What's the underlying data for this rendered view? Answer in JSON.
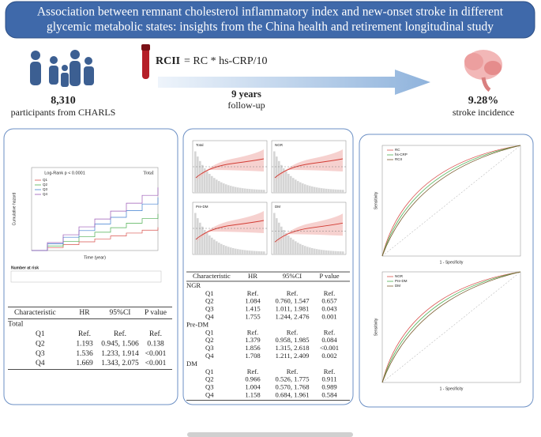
{
  "header": {
    "title": [
      "Association between remnant cholesterol inflammatory index and new-onset stroke in different",
      "glycemic metabolic states: insights from the China health and retirement longitudinal study"
    ]
  },
  "participants": {
    "count": "8,310",
    "label": "participants from CHARLS"
  },
  "formula": {
    "name": "RCII",
    "expression": "= RC * hs-CRP/10"
  },
  "followup": {
    "years": "9 years",
    "label": "follow-up"
  },
  "incidence": {
    "value": "9.28%",
    "label": "stroke incidence"
  },
  "left_panel": {
    "km": {
      "annotation": "Log-Rank p < 0.0001",
      "group": "Total",
      "legend": [
        "Q1",
        "Q2",
        "Q3",
        "Q4"
      ],
      "xlabel": "Time (year)",
      "ylabel": "Cumulative hazard",
      "risk_title": "Number at risk"
    },
    "table": {
      "header": [
        "Characteristic",
        "HR",
        "95%CI",
        "P value"
      ],
      "rows": [
        [
          "Total"
        ],
        [
          "Q1",
          "Ref.",
          "Ref.",
          "Ref."
        ],
        [
          "Q2",
          "1.193",
          "0.945, 1.506",
          "0.138"
        ],
        [
          "Q3",
          "1.536",
          "1.233, 1.914",
          "<0.001"
        ],
        [
          "Q4",
          "1.669",
          "1.343, 2.075",
          "<0.001"
        ]
      ]
    }
  },
  "middle_panel": {
    "plots": [
      "Total",
      "NGR",
      "Pre-DM",
      "DM"
    ],
    "table": {
      "header": [
        "Characteristic",
        "HR",
        "95%CI",
        "P value"
      ],
      "rows": [
        [
          "NGR"
        ],
        [
          "Q1",
          "Ref.",
          "Ref.",
          "Ref."
        ],
        [
          "Q2",
          "1.084",
          "0.760, 1.547",
          "0.657"
        ],
        [
          "Q3",
          "1.415",
          "1.011, 1.981",
          "0.043"
        ],
        [
          "Q4",
          "1.755",
          "1.244, 2.476",
          "0.001"
        ],
        [
          "Pre-DM"
        ],
        [
          "Q1",
          "Ref.",
          "Ref.",
          "Ref."
        ],
        [
          "Q2",
          "1.379",
          "0.958, 1.985",
          "0.084"
        ],
        [
          "Q3",
          "1.856",
          "1.315, 2.618",
          "<0.001"
        ],
        [
          "Q4",
          "1.708",
          "1.211, 2.409",
          "0.002"
        ],
        [
          "DM"
        ],
        [
          "Q1",
          "Ref.",
          "Ref.",
          "Ref."
        ],
        [
          "Q2",
          "0.966",
          "0.526, 1.775",
          "0.911"
        ],
        [
          "Q3",
          "1.004",
          "0.570, 1.768",
          "0.989"
        ],
        [
          "Q4",
          "1.158",
          "0.684, 1.961",
          "0.584"
        ]
      ]
    }
  },
  "right_panel": {
    "roc_top": {
      "legend": [
        "RC",
        "hs-CRP",
        "RCII"
      ],
      "xlabel": "1 - Specificity",
      "ylabel": "Sensitivity"
    },
    "roc_bottom": {
      "legend": [
        "NGR",
        "Pre-DM",
        "DM"
      ],
      "xlabel": "1 - Specificity",
      "ylabel": "Sensitivity"
    }
  }
}
